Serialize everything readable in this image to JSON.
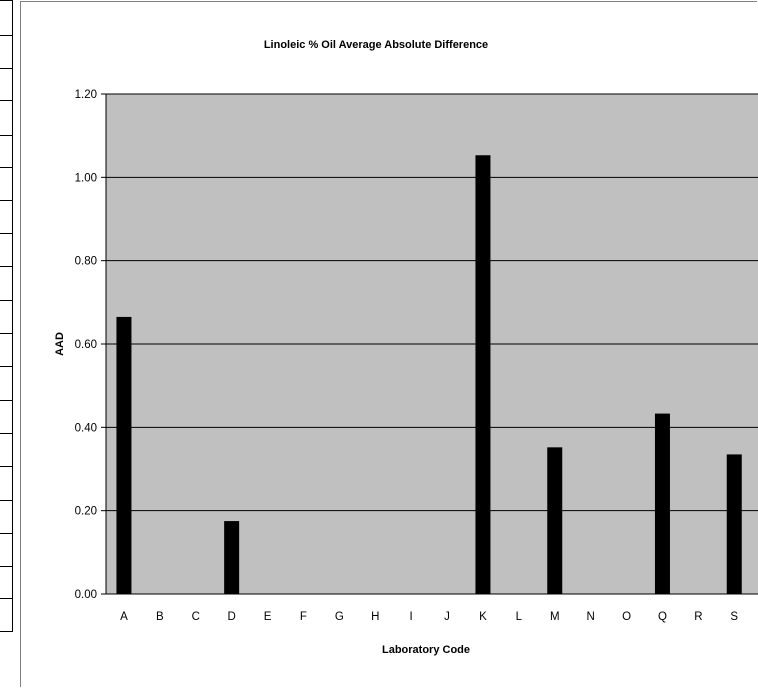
{
  "chart_data": {
    "type": "bar",
    "title": "Linoleic % Oil Average Absolute Difference",
    "xlabel": "Laboratory Code",
    "ylabel": "AAD",
    "categories": [
      "A",
      "B",
      "C",
      "D",
      "E",
      "F",
      "G",
      "H",
      "I",
      "J",
      "K",
      "L",
      "M",
      "N",
      "O",
      "Q",
      "R",
      "S"
    ],
    "values": [
      0.665,
      0,
      0,
      0.175,
      0,
      0,
      0,
      0,
      0,
      0,
      1.053,
      0,
      0.352,
      0,
      0,
      0.433,
      0,
      0.335
    ],
    "ylim": [
      0,
      1.2
    ],
    "yticks": [
      "0.00",
      "0.20",
      "0.40",
      "0.60",
      "0.80",
      "1.00",
      "1.20"
    ],
    "grid": true,
    "plot_background": "#c0c0c0",
    "bar_color": "#000000"
  }
}
